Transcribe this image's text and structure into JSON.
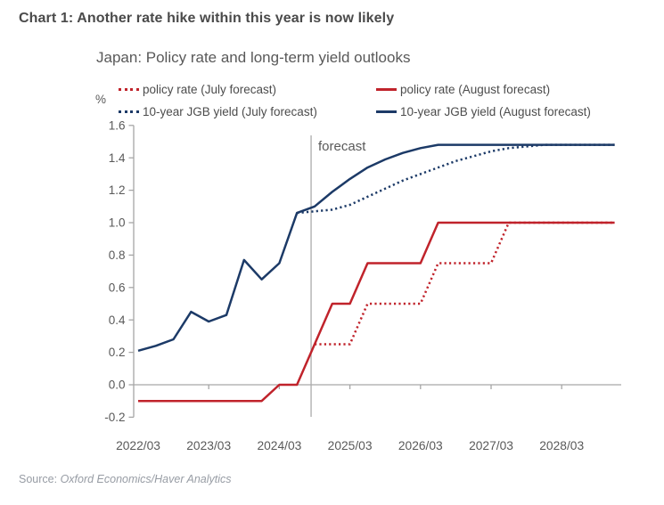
{
  "header": {
    "title": "Chart 1: Another rate hike within this year is now likely"
  },
  "chart": {
    "subtitle": "Japan: Policy rate and long-term yield outlooks",
    "y_axis_unit": "%",
    "forecast_label": "forecast"
  },
  "source": {
    "prefix": "Source: ",
    "text": "Oxford Economics/Haver Analytics"
  },
  "colors": {
    "red": "#c0232b",
    "navy": "#1c3a67",
    "axis_gray": "#a6a6a6",
    "tick_text_gray": "#595959",
    "title_gray": "#4a4a4a",
    "source_gray": "#979ca4"
  },
  "chart_data": {
    "type": "line",
    "title": "Japan: Policy rate and long-term yield outlooks",
    "unit": "%",
    "x": [
      "2022/03",
      "2022/06",
      "2022/09",
      "2022/12",
      "2023/03",
      "2023/06",
      "2023/09",
      "2023/12",
      "2024/03",
      "2024/06",
      "2024/09",
      "2024/12",
      "2025/03",
      "2025/06",
      "2025/09",
      "2025/12",
      "2026/03",
      "2026/06",
      "2026/09",
      "2026/12",
      "2027/03",
      "2027/06",
      "2027/09",
      "2027/12",
      "2028/03",
      "2028/06",
      "2028/09",
      "2028/12"
    ],
    "x_axis_tick_labels": [
      "2022/03",
      "2023/03",
      "2024/03",
      "2025/03",
      "2026/03",
      "2027/03",
      "2028/03"
    ],
    "x_tick_every_quarters": 4,
    "y_ticks": [
      "1.6",
      "1.4",
      "1.2",
      "1.0",
      "0.8",
      "0.6",
      "0.4",
      "0.2",
      "0.0",
      "-0.2"
    ],
    "ylim": [
      -0.2,
      1.6
    ],
    "grid": "zero-line-only",
    "legend_position": "top",
    "forecast_divider": {
      "label": "forecast",
      "x_index": 9.8
    },
    "series": [
      {
        "id": "policy-rate-july",
        "name": "policy rate (July forecast)",
        "style": "dotted",
        "color": "#c0232b",
        "values": [
          null,
          null,
          null,
          null,
          null,
          null,
          null,
          null,
          null,
          null,
          0.25,
          0.25,
          0.25,
          0.5,
          0.5,
          0.5,
          0.5,
          0.75,
          0.75,
          0.75,
          0.75,
          1.0,
          1.0,
          1.0,
          1.0,
          1.0,
          1.0,
          1.0
        ]
      },
      {
        "id": "policy-rate-august",
        "name": "policy rate (August forecast)",
        "style": "solid",
        "color": "#c0232b",
        "values": [
          -0.1,
          -0.1,
          -0.1,
          -0.1,
          -0.1,
          -0.1,
          -0.1,
          -0.1,
          0.0,
          0.0,
          0.25,
          0.5,
          0.5,
          0.75,
          0.75,
          0.75,
          0.75,
          1.0,
          1.0,
          1.0,
          1.0,
          1.0,
          1.0,
          1.0,
          1.0,
          1.0,
          1.0,
          1.0
        ]
      },
      {
        "id": "jgb-yield-july",
        "name": "10-year JGB yield (July forecast)",
        "style": "dotted",
        "color": "#1c3a67",
        "values": [
          null,
          null,
          null,
          null,
          null,
          null,
          null,
          null,
          null,
          1.06,
          1.07,
          1.08,
          1.11,
          1.16,
          1.21,
          1.26,
          1.3,
          1.34,
          1.38,
          1.41,
          1.44,
          1.46,
          1.47,
          1.48,
          1.48,
          1.48,
          1.48,
          1.48
        ]
      },
      {
        "id": "jgb-yield-august",
        "name": "10-year JGB yield (August forecast)",
        "style": "solid",
        "color": "#1c3a67",
        "values": [
          0.21,
          0.24,
          0.28,
          0.45,
          0.39,
          0.43,
          0.77,
          0.65,
          0.75,
          1.06,
          1.1,
          1.19,
          1.27,
          1.34,
          1.39,
          1.43,
          1.46,
          1.48,
          1.48,
          1.48,
          1.48,
          1.48,
          1.48,
          1.48,
          1.48,
          1.48,
          1.48,
          1.48
        ]
      }
    ]
  }
}
